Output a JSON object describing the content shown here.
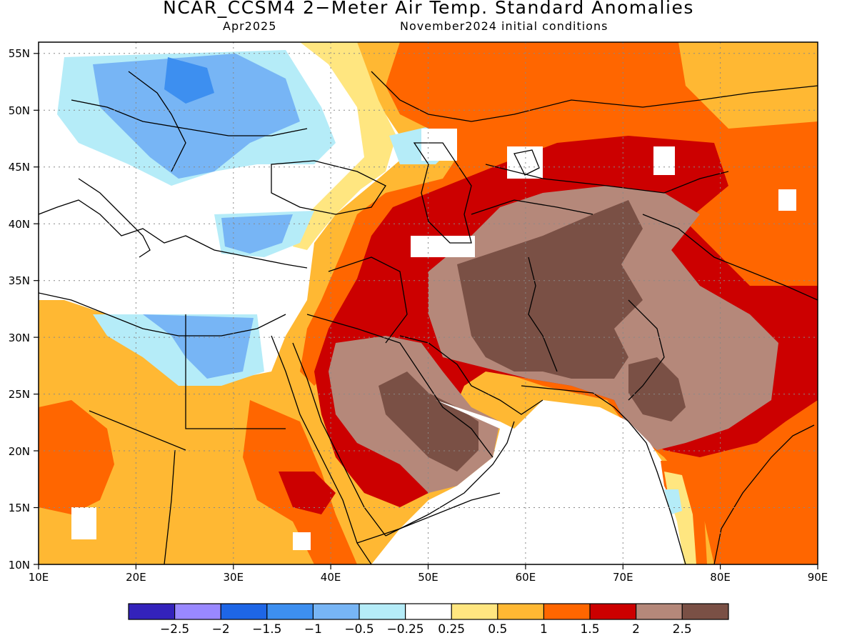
{
  "title": "NCAR_CCSM4 2−Meter Air Temp. Standard Anomalies",
  "subtitle_left": "Apr2025",
  "subtitle_right": "November2024 initial conditions",
  "map": {
    "lon_range": [
      10,
      90
    ],
    "lat_range": [
      10,
      56
    ],
    "lon_ticks": [
      "10E",
      "20E",
      "30E",
      "40E",
      "50E",
      "60E",
      "70E",
      "80E",
      "90E"
    ],
    "lat_ticks": [
      "10N",
      "15N",
      "20N",
      "25N",
      "30N",
      "35N",
      "40N",
      "45N",
      "50N",
      "55N"
    ],
    "grid": "dotted"
  },
  "colorbar": {
    "colors": [
      "#3322bb",
      "#9988ff",
      "#1e66e6",
      "#3d8ff0",
      "#77b5f5",
      "#b5ecf8",
      "#ffffff",
      "#ffe680",
      "#ffb833",
      "#ff6600",
      "#cc0000",
      "#b5887a",
      "#7a5045"
    ],
    "labels": [
      "−2.5",
      "−2",
      "−1.5",
      "−1",
      "−0.5",
      "−0.25",
      "0.25",
      "0.5",
      "1",
      "1.5",
      "2",
      "2.5"
    ]
  }
}
